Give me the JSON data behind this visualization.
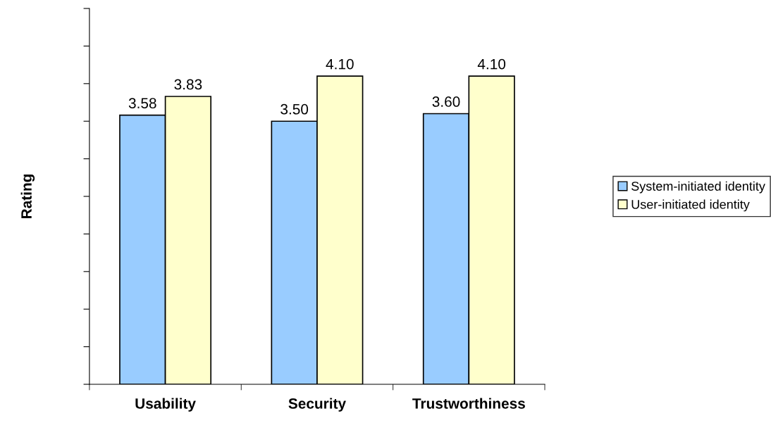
{
  "chart_data": {
    "type": "bar",
    "ylabel": "Rating",
    "categories": [
      "Usability",
      "Security",
      "Trustworthiness"
    ],
    "series": [
      {
        "name": "System-initiated identity",
        "color": "#99ccff",
        "values": [
          3.58,
          3.5,
          3.6
        ],
        "value_labels": [
          "3.58",
          "3.50",
          "3.60"
        ]
      },
      {
        "name": "User-initiated identity",
        "color": "#ffffcc",
        "values": [
          3.83,
          4.1,
          4.1
        ],
        "value_labels": [
          "3.83",
          "4.10",
          "4.10"
        ]
      }
    ],
    "ylim": [
      0,
      5
    ],
    "yticks": [
      {
        "value": 0,
        "label": null
      },
      {
        "value": 0.5,
        "label": null
      },
      {
        "value": 1,
        "label": null
      },
      {
        "value": 1.5,
        "label": null
      },
      {
        "value": 2,
        "label": null
      },
      {
        "value": 2.5,
        "label": null
      },
      {
        "value": 3,
        "label": null
      },
      {
        "value": 3.5,
        "label": null
      },
      {
        "value": 4,
        "label": null
      },
      {
        "value": 4.5,
        "label": null
      },
      {
        "value": 5,
        "label": null
      }
    ],
    "tick_labels": "x",
    "legend": "right",
    "grid": false
  }
}
